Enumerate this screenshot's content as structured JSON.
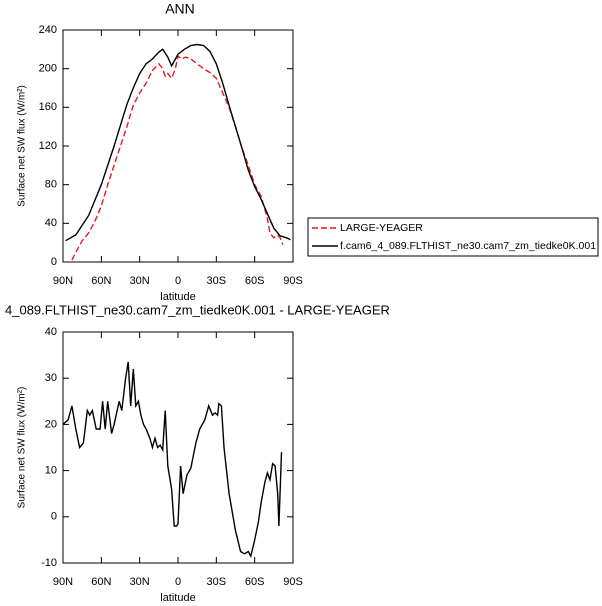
{
  "chart_data": [
    {
      "type": "line",
      "title": "ANN",
      "xlabel": "latitude",
      "ylabel": "Surface net SW flux (W/m²)",
      "xlim": [
        90,
        -90
      ],
      "xticks": [
        {
          "value": 90,
          "label": "90N"
        },
        {
          "value": 60,
          "label": "60N"
        },
        {
          "value": 30,
          "label": "30N"
        },
        0,
        {
          "value": -30,
          "label": "30S"
        },
        {
          "value": -60,
          "label": "60S"
        },
        {
          "value": -90,
          "label": "90S"
        }
      ],
      "ylim": [
        0,
        240
      ],
      "yticks": [
        0,
        40,
        80,
        120,
        160,
        200,
        240
      ],
      "legend": "right",
      "series": [
        {
          "name": "LARGE-YEAGER",
          "color": "#e41a1c",
          "dash": true,
          "x": [
            83,
            80,
            75,
            70,
            65,
            60,
            55,
            50,
            45,
            40,
            35,
            30,
            25,
            20,
            15,
            12,
            10,
            8,
            5,
            2,
            0,
            -3,
            -6,
            -10,
            -15,
            -20,
            -25,
            -30,
            -35,
            -40,
            -45,
            -50,
            -55,
            -60,
            -65,
            -70,
            -72,
            -75,
            -78,
            -80,
            -82
          ],
          "values": [
            2,
            10,
            22,
            30,
            42,
            58,
            80,
            100,
            120,
            140,
            162,
            175,
            185,
            198,
            205,
            200,
            192,
            195,
            190,
            200,
            213,
            210,
            212,
            210,
            205,
            200,
            196,
            190,
            175,
            160,
            140,
            118,
            100,
            80,
            68,
            45,
            30,
            25,
            28,
            25,
            18
          ]
        },
        {
          "name": "f.cam6_4_089.FLTHIST_ne30.cam7_zm_tiedke0K.001",
          "color": "#000000",
          "dash": false,
          "x": [
            88,
            80,
            70,
            60,
            50,
            40,
            35,
            30,
            25,
            20,
            15,
            12,
            8,
            5,
            2,
            0,
            -5,
            -10,
            -15,
            -20,
            -25,
            -30,
            -35,
            -40,
            -45,
            -50,
            -55,
            -60,
            -65,
            -70,
            -75,
            -80,
            -85,
            -88
          ],
          "values": [
            22,
            28,
            48,
            80,
            120,
            163,
            180,
            195,
            205,
            210,
            217,
            220,
            212,
            203,
            210,
            215,
            220,
            224,
            225,
            224,
            218,
            205,
            185,
            162,
            140,
            118,
            95,
            78,
            65,
            50,
            35,
            27,
            25,
            23
          ]
        }
      ]
    },
    {
      "type": "line",
      "title": "4_089.FLTHIST_ne30.cam7_zm_tiedke0K.001 - LARGE-YEAGER",
      "xlabel": "latitude",
      "ylabel": "Surface net SW flux (W/m²)",
      "xlim": [
        90,
        -90
      ],
      "xticks": [
        {
          "value": 90,
          "label": "90N"
        },
        {
          "value": 60,
          "label": "60N"
        },
        {
          "value": 30,
          "label": "30N"
        },
        0,
        {
          "value": -30,
          "label": "30S"
        },
        {
          "value": -60,
          "label": "60S"
        },
        {
          "value": -90,
          "label": "90S"
        }
      ],
      "ylim": [
        -10,
        40
      ],
      "yticks": [
        -10,
        0,
        10,
        20,
        30,
        40
      ],
      "series": [
        {
          "color": "#000000",
          "dash": false,
          "x": [
            90,
            86,
            83,
            80,
            77,
            74,
            71,
            69,
            67,
            64,
            61,
            59,
            57,
            55,
            52,
            50,
            46,
            44,
            41,
            39,
            37,
            35,
            33,
            31,
            29,
            27,
            25,
            22,
            20,
            18,
            16,
            14,
            12,
            10,
            8,
            5,
            3,
            1,
            0,
            -2,
            -4,
            -7,
            -10,
            -14,
            -17,
            -21,
            -24,
            -27,
            -29,
            -31,
            -32,
            -34,
            -36,
            -40,
            -45,
            -49,
            -52,
            -55,
            -57,
            -60,
            -63,
            -65,
            -68,
            -70,
            -72,
            -74,
            -76,
            -78,
            -79,
            -81
          ],
          "values": [
            20,
            21,
            24,
            19,
            15,
            16,
            23,
            22,
            23,
            19,
            19,
            25,
            19,
            25,
            18,
            20,
            25,
            23,
            30,
            33.5,
            24,
            32,
            24,
            25,
            22,
            20,
            19,
            17,
            15,
            17,
            15,
            15.5,
            14.5,
            23,
            11,
            6,
            -2,
            -2,
            -1.5,
            11,
            5,
            9,
            10.5,
            16,
            19,
            21,
            24,
            22,
            22.5,
            22,
            24.5,
            24,
            15,
            5,
            -3,
            -7.5,
            -8,
            -7.5,
            -8.5,
            -5,
            -1,
            3,
            7.5,
            9.5,
            8,
            11.5,
            11,
            5,
            -2,
            14
          ]
        }
      ]
    }
  ]
}
